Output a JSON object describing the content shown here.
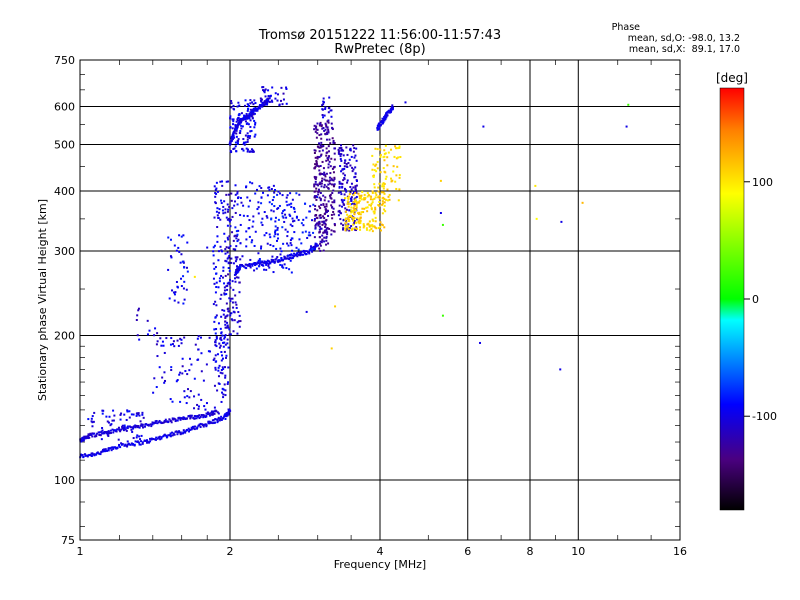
{
  "chart_data": {
    "type": "scatter",
    "title": "Tromsø 20151222 11:56:00-11:57:43",
    "subtitle": "RwPretec (8p)",
    "xlabel": "Frequency [MHz]",
    "ylabel": "Stationary phase Virtual Height [km]",
    "xscale": "log",
    "yscale": "log",
    "xlim": [
      1,
      16
    ],
    "ylim": [
      75,
      750
    ],
    "xticks": [
      1,
      2,
      4,
      6,
      8,
      10,
      16
    ],
    "yticks": [
      75,
      100,
      200,
      300,
      400,
      500,
      600,
      750
    ],
    "grid": true,
    "colorbar": {
      "label": "[deg]",
      "range": [
        -180,
        180
      ],
      "ticks": [
        100,
        0,
        -100
      ]
    },
    "stats": {
      "heading": "Phase",
      "o_line": "mean, sd,O: -98.0, 13.2",
      "x_line": "mean, sd,X:  89.1, 17.0"
    },
    "traces": [
      {
        "x": [
          1.0,
          1.1,
          1.2,
          1.35,
          1.5,
          1.65,
          1.8,
          1.95,
          2.0
        ],
        "y": [
          112,
          114,
          118,
          120,
          124,
          127,
          131,
          135,
          140
        ],
        "phase": -100
      },
      {
        "x": [
          1.0,
          1.05,
          1.15,
          1.3,
          1.45,
          1.6,
          1.75,
          1.9
        ],
        "y": [
          121,
          124,
          126,
          129,
          132,
          134,
          136,
          139
        ],
        "phase": -105
      },
      {
        "x": [
          2.05,
          2.1,
          2.3,
          2.5,
          2.7,
          2.9,
          3.0
        ],
        "y": [
          270,
          278,
          282,
          287,
          294,
          300,
          310
        ],
        "phase": -100
      },
      {
        "x": [
          2.0,
          2.05,
          2.1,
          2.2,
          2.3,
          2.4
        ],
        "y": [
          500,
          540,
          560,
          580,
          600,
          620
        ],
        "phase": -100
      },
      {
        "x": [
          3.95,
          4.05,
          4.15,
          4.25
        ],
        "y": [
          540,
          560,
          580,
          600
        ],
        "phase": -100
      }
    ],
    "clusters": [
      {
        "x": [
          1.03,
          1.35
        ],
        "y": [
          120,
          140
        ],
        "phase": -100,
        "n": 70
      },
      {
        "x": [
          1.4,
          1.95
        ],
        "y": [
          140,
          200
        ],
        "phase": -100,
        "n": 90
      },
      {
        "x": [
          1.5,
          1.65
        ],
        "y": [
          230,
          330
        ],
        "phase": -95,
        "n": 40
      },
      {
        "x": [
          1.3,
          1.45
        ],
        "y": [
          190,
          230
        ],
        "phase": -105,
        "n": 15
      },
      {
        "x": [
          1.85,
          2.0
        ],
        "y": [
          150,
          420
        ],
        "phase": -100,
        "n": 170
      },
      {
        "x": [
          1.95,
          2.1
        ],
        "y": [
          200,
          400
        ],
        "phase": -110,
        "n": 100
      },
      {
        "x": [
          2.0,
          2.25
        ],
        "y": [
          480,
          620
        ],
        "phase": -100,
        "n": 130
      },
      {
        "x": [
          2.05,
          2.7
        ],
        "y": [
          270,
          420
        ],
        "phase": -95,
        "n": 150
      },
      {
        "x": [
          2.3,
          2.6
        ],
        "y": [
          600,
          660
        ],
        "phase": -105,
        "n": 40
      },
      {
        "x": [
          2.4,
          3.0
        ],
        "y": [
          300,
          400
        ],
        "phase": -90,
        "n": 70
      },
      {
        "x": [
          2.95,
          3.25
        ],
        "y": [
          320,
          560
        ],
        "phase": -130,
        "n": 260
      },
      {
        "x": [
          3.3,
          3.6
        ],
        "y": [
          330,
          500
        ],
        "phase": -110,
        "n": 170
      },
      {
        "x": [
          3.4,
          4.1
        ],
        "y": [
          330,
          400
        ],
        "phase": 110,
        "n": 180
      },
      {
        "x": [
          3.85,
          4.4
        ],
        "y": [
          380,
          500
        ],
        "phase": 105,
        "n": 80
      },
      {
        "x": [
          3.05,
          3.2
        ],
        "y": [
          560,
          630
        ],
        "phase": -100,
        "n": 20
      },
      {
        "x": [
          3.0,
          3.15
        ],
        "y": [
          300,
          350
        ],
        "phase": -125,
        "n": 40
      }
    ],
    "points": [
      {
        "x": 5.3,
        "y": 420,
        "phase": 110
      },
      {
        "x": 5.3,
        "y": 360,
        "phase": -100
      },
      {
        "x": 5.35,
        "y": 340,
        "phase": 20
      },
      {
        "x": 5.35,
        "y": 220,
        "phase": 20
      },
      {
        "x": 6.35,
        "y": 193,
        "phase": -100
      },
      {
        "x": 6.45,
        "y": 545,
        "phase": -100
      },
      {
        "x": 8.2,
        "y": 410,
        "phase": 100
      },
      {
        "x": 8.25,
        "y": 350,
        "phase": 90
      },
      {
        "x": 9.2,
        "y": 170,
        "phase": -100
      },
      {
        "x": 9.25,
        "y": 345,
        "phase": -100
      },
      {
        "x": 10.2,
        "y": 378,
        "phase": 120
      },
      {
        "x": 12.5,
        "y": 545,
        "phase": -100
      },
      {
        "x": 12.6,
        "y": 605,
        "phase": 20
      },
      {
        "x": 4.5,
        "y": 612,
        "phase": -100
      },
      {
        "x": 3.2,
        "y": 188,
        "phase": 110
      },
      {
        "x": 3.25,
        "y": 230,
        "phase": 110
      },
      {
        "x": 2.85,
        "y": 224,
        "phase": -100
      },
      {
        "x": 1.7,
        "y": 265,
        "phase": 100
      },
      {
        "x": 1.8,
        "y": 305,
        "phase": -100
      }
    ]
  }
}
